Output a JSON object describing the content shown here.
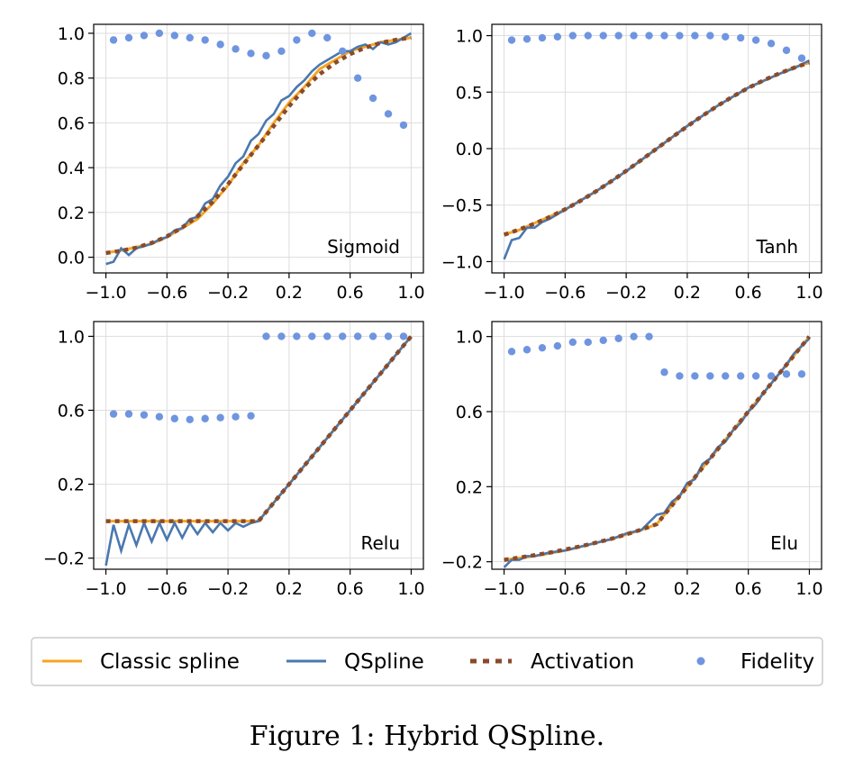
{
  "caption": "Figure 1: Hybrid QSpline.",
  "colors": {
    "classic_spline": "#f5a623",
    "qspline": "#4a78b0",
    "activation": "#8b4a2b",
    "fidelity": "#6f95e0",
    "grid": "#dddddd",
    "axes": "#000000"
  },
  "legend": {
    "placement": "bottom",
    "items": [
      {
        "label": "Classic spline",
        "style": "line",
        "color": "#f5a623"
      },
      {
        "label": "QSpline",
        "style": "line",
        "color": "#4a78b0"
      },
      {
        "label": "Activation",
        "style": "dotted",
        "color": "#8b4a2b"
      },
      {
        "label": "Fidelity",
        "style": "marker",
        "color": "#6f95e0"
      }
    ]
  },
  "chart_data": [
    {
      "type": "line",
      "label": "Sigmoid",
      "label_position": "bottom-right",
      "xlim": [
        -1.08,
        1.08
      ],
      "ylim": [
        -0.07,
        1.04
      ],
      "xticks": [
        -1.0,
        -0.6,
        -0.2,
        0.2,
        0.6,
        1.0
      ],
      "xtick_labels": [
        "−1.0",
        "−0.6",
        "−0.2",
        "0.2",
        "0.6",
        "1.0"
      ],
      "yticks": [
        0.0,
        0.2,
        0.4,
        0.6,
        0.8,
        1.0
      ],
      "ytick_labels": [
        "0.0",
        "0.2",
        "0.4",
        "0.6",
        "0.8",
        "1.0"
      ],
      "grid": true,
      "series": [
        {
          "name": "Classic spline",
          "x": [
            -1.0,
            -0.9,
            -0.8,
            -0.7,
            -0.6,
            -0.5,
            -0.4,
            -0.3,
            -0.2,
            -0.1,
            0.0,
            0.1,
            0.2,
            0.3,
            0.4,
            0.5,
            0.6,
            0.7,
            0.8,
            0.9,
            1.0
          ],
          "y": [
            0.02,
            0.03,
            0.045,
            0.06,
            0.09,
            0.13,
            0.17,
            0.24,
            0.32,
            0.42,
            0.5,
            0.6,
            0.69,
            0.76,
            0.84,
            0.88,
            0.92,
            0.94,
            0.96,
            0.97,
            0.98
          ]
        },
        {
          "name": "QSpline",
          "x": [
            -1.0,
            -0.95,
            -0.9,
            -0.85,
            -0.8,
            -0.75,
            -0.7,
            -0.65,
            -0.6,
            -0.55,
            -0.5,
            -0.45,
            -0.4,
            -0.35,
            -0.3,
            -0.25,
            -0.2,
            -0.15,
            -0.1,
            -0.05,
            0.0,
            0.05,
            0.1,
            0.15,
            0.2,
            0.25,
            0.3,
            0.35,
            0.4,
            0.45,
            0.5,
            0.55,
            0.6,
            0.65,
            0.7,
            0.75,
            0.8,
            0.85,
            0.9,
            0.95,
            1.0
          ],
          "y": [
            -0.03,
            -0.02,
            0.04,
            0.01,
            0.04,
            0.05,
            0.06,
            0.08,
            0.09,
            0.12,
            0.13,
            0.17,
            0.18,
            0.24,
            0.26,
            0.32,
            0.36,
            0.42,
            0.45,
            0.52,
            0.55,
            0.61,
            0.64,
            0.7,
            0.72,
            0.76,
            0.79,
            0.83,
            0.86,
            0.88,
            0.9,
            0.92,
            0.92,
            0.94,
            0.95,
            0.93,
            0.96,
            0.95,
            0.96,
            0.98,
            1.0
          ]
        },
        {
          "name": "Activation",
          "x": [
            -1.0,
            -0.9,
            -0.8,
            -0.7,
            -0.6,
            -0.5,
            -0.4,
            -0.3,
            -0.2,
            -0.1,
            0.0,
            0.1,
            0.2,
            0.3,
            0.4,
            0.5,
            0.6,
            0.7,
            0.8,
            0.9,
            1.0
          ],
          "y": [
            0.019,
            0.029,
            0.043,
            0.064,
            0.093,
            0.133,
            0.183,
            0.248,
            0.326,
            0.414,
            0.5,
            0.586,
            0.674,
            0.752,
            0.817,
            0.867,
            0.907,
            0.936,
            0.957,
            0.971,
            0.981
          ]
        },
        {
          "name": "Fidelity",
          "x": [
            -0.95,
            -0.85,
            -0.75,
            -0.65,
            -0.55,
            -0.45,
            -0.35,
            -0.25,
            -0.15,
            -0.05,
            0.05,
            0.15,
            0.25,
            0.35,
            0.45,
            0.55,
            0.65,
            0.75,
            0.85,
            0.95
          ],
          "y": [
            0.97,
            0.98,
            0.99,
            1.0,
            0.99,
            0.98,
            0.97,
            0.95,
            0.93,
            0.91,
            0.9,
            0.92,
            0.97,
            1.0,
            0.98,
            0.92,
            0.8,
            0.71,
            0.64,
            0.59
          ]
        }
      ]
    },
    {
      "type": "line",
      "label": "Tanh",
      "label_position": "bottom-right",
      "xlim": [
        -1.08,
        1.08
      ],
      "ylim": [
        -1.1,
        1.1
      ],
      "xticks": [
        -1.0,
        -0.6,
        -0.2,
        0.2,
        0.6,
        1.0
      ],
      "xtick_labels": [
        "−1.0",
        "−0.6",
        "−0.2",
        "0.2",
        "0.6",
        "1.0"
      ],
      "yticks": [
        -1.0,
        -0.5,
        0.0,
        0.5,
        1.0
      ],
      "ytick_labels": [
        "−1.0",
        "−0.5",
        "0.0",
        "0.5",
        "1.0"
      ],
      "grid": true,
      "series": [
        {
          "name": "Classic spline",
          "x": [
            -1.0,
            -0.9,
            -0.8,
            -0.7,
            -0.6,
            -0.5,
            -0.4,
            -0.3,
            -0.2,
            -0.1,
            0.0,
            0.1,
            0.2,
            0.3,
            0.4,
            0.5,
            0.6,
            0.7,
            0.8,
            0.9,
            1.0
          ],
          "y": [
            -0.76,
            -0.72,
            -0.66,
            -0.6,
            -0.54,
            -0.46,
            -0.38,
            -0.29,
            -0.2,
            -0.1,
            0.0,
            0.1,
            0.2,
            0.29,
            0.38,
            0.46,
            0.54,
            0.6,
            0.66,
            0.72,
            0.76
          ]
        },
        {
          "name": "QSpline",
          "x": [
            -1.0,
            -0.95,
            -0.9,
            -0.85,
            -0.8,
            -0.75,
            -0.7,
            -0.6,
            -0.5,
            -0.4,
            -0.3,
            -0.2,
            -0.1,
            0.0,
            0.1,
            0.2,
            0.3,
            0.4,
            0.5,
            0.6,
            0.7,
            0.8,
            0.9,
            1.0
          ],
          "y": [
            -0.98,
            -0.81,
            -0.79,
            -0.7,
            -0.7,
            -0.65,
            -0.62,
            -0.54,
            -0.46,
            -0.38,
            -0.29,
            -0.2,
            -0.1,
            0.0,
            0.1,
            0.2,
            0.29,
            0.38,
            0.46,
            0.54,
            0.6,
            0.66,
            0.71,
            0.78
          ]
        },
        {
          "name": "Activation",
          "x": [
            -1.0,
            -0.9,
            -0.8,
            -0.7,
            -0.6,
            -0.5,
            -0.4,
            -0.3,
            -0.2,
            -0.1,
            0.0,
            0.1,
            0.2,
            0.3,
            0.4,
            0.5,
            0.6,
            0.7,
            0.8,
            0.9,
            1.0
          ],
          "y": [
            -0.762,
            -0.716,
            -0.664,
            -0.604,
            -0.537,
            -0.462,
            -0.38,
            -0.291,
            -0.197,
            -0.1,
            0.0,
            0.1,
            0.197,
            0.291,
            0.38,
            0.462,
            0.537,
            0.604,
            0.664,
            0.716,
            0.762
          ]
        },
        {
          "name": "Fidelity",
          "x": [
            -0.95,
            -0.85,
            -0.75,
            -0.65,
            -0.55,
            -0.45,
            -0.35,
            -0.25,
            -0.15,
            -0.05,
            0.05,
            0.15,
            0.25,
            0.35,
            0.45,
            0.55,
            0.65,
            0.75,
            0.85,
            0.95
          ],
          "y": [
            0.96,
            0.97,
            0.98,
            0.99,
            1.0,
            1.0,
            1.0,
            1.0,
            1.0,
            1.0,
            1.0,
            1.0,
            1.0,
            1.0,
            0.99,
            0.98,
            0.96,
            0.93,
            0.87,
            0.8
          ]
        }
      ]
    },
    {
      "type": "line",
      "label": "Relu",
      "label_position": "bottom-right",
      "xlim": [
        -1.08,
        1.08
      ],
      "ylim": [
        -0.26,
        1.08
      ],
      "xticks": [
        -1.0,
        -0.6,
        -0.2,
        0.2,
        0.6,
        1.0
      ],
      "xtick_labels": [
        "−1.0",
        "−0.6",
        "−0.2",
        "0.2",
        "0.6",
        "1.0"
      ],
      "yticks": [
        -0.2,
        0.2,
        0.6,
        1.0
      ],
      "ytick_labels": [
        "−0.2",
        "0.2",
        "0.6",
        "1.0"
      ],
      "grid": true,
      "series": [
        {
          "name": "Classic spline",
          "x": [
            -1.0,
            0.0,
            0.1,
            0.2,
            0.3,
            0.4,
            0.5,
            0.6,
            0.7,
            0.8,
            0.9,
            1.0
          ],
          "y": [
            0.0,
            0.0,
            0.1,
            0.2,
            0.3,
            0.4,
            0.5,
            0.6,
            0.7,
            0.8,
            0.9,
            1.0
          ]
        },
        {
          "name": "QSpline",
          "x": [
            -1.0,
            -0.95,
            -0.9,
            -0.85,
            -0.8,
            -0.75,
            -0.7,
            -0.65,
            -0.6,
            -0.55,
            -0.5,
            -0.45,
            -0.4,
            -0.35,
            -0.3,
            -0.25,
            -0.2,
            -0.15,
            -0.1,
            -0.05,
            0.0,
            0.1,
            0.2,
            0.3,
            0.4,
            0.5,
            0.6,
            0.7,
            0.8,
            0.9,
            1.0
          ],
          "y": [
            -0.24,
            -0.02,
            -0.16,
            -0.02,
            -0.13,
            -0.01,
            -0.11,
            -0.01,
            -0.1,
            -0.01,
            -0.09,
            -0.01,
            -0.07,
            -0.01,
            -0.06,
            -0.01,
            -0.05,
            -0.01,
            -0.03,
            -0.01,
            0.0,
            0.1,
            0.2,
            0.3,
            0.4,
            0.5,
            0.6,
            0.7,
            0.8,
            0.9,
            1.0
          ]
        },
        {
          "name": "Activation",
          "x": [
            -1.0,
            -0.9,
            -0.8,
            -0.7,
            -0.6,
            -0.5,
            -0.4,
            -0.3,
            -0.2,
            -0.1,
            0.0,
            0.1,
            0.2,
            0.3,
            0.4,
            0.5,
            0.6,
            0.7,
            0.8,
            0.9,
            1.0
          ],
          "y": [
            0.0,
            0.0,
            0.0,
            0.0,
            0.0,
            0.0,
            0.0,
            0.0,
            0.0,
            0.0,
            0.0,
            0.1,
            0.2,
            0.3,
            0.4,
            0.5,
            0.6,
            0.7,
            0.8,
            0.9,
            1.0
          ]
        },
        {
          "name": "Fidelity",
          "x": [
            -0.95,
            -0.85,
            -0.75,
            -0.65,
            -0.55,
            -0.45,
            -0.35,
            -0.25,
            -0.15,
            -0.05,
            0.05,
            0.15,
            0.25,
            0.35,
            0.45,
            0.55,
            0.65,
            0.75,
            0.85,
            0.95
          ],
          "y": [
            0.58,
            0.58,
            0.575,
            0.565,
            0.555,
            0.55,
            0.555,
            0.56,
            0.565,
            0.57,
            1.0,
            1.0,
            1.0,
            1.0,
            1.0,
            1.0,
            1.0,
            1.0,
            1.0,
            1.0
          ]
        }
      ]
    },
    {
      "type": "line",
      "label": "Elu",
      "label_position": "bottom-right",
      "xlim": [
        -1.08,
        1.08
      ],
      "ylim": [
        -0.24,
        1.08
      ],
      "xticks": [
        -1.0,
        -0.6,
        -0.2,
        0.2,
        0.6,
        1.0
      ],
      "xtick_labels": [
        "−1.0",
        "−0.6",
        "−0.2",
        "0.2",
        "0.6",
        "1.0"
      ],
      "yticks": [
        -0.2,
        0.2,
        0.6,
        1.0
      ],
      "ytick_labels": [
        "−0.2",
        "0.2",
        "0.6",
        "1.0"
      ],
      "grid": true,
      "series": [
        {
          "name": "Classic spline",
          "x": [
            -1.0,
            -0.9,
            -0.8,
            -0.7,
            -0.6,
            -0.5,
            -0.4,
            -0.3,
            -0.2,
            -0.1,
            0.0,
            0.1,
            0.2,
            0.3,
            0.4,
            0.5,
            0.6,
            0.7,
            0.8,
            0.9,
            1.0
          ],
          "y": [
            -0.19,
            -0.18,
            -0.17,
            -0.155,
            -0.14,
            -0.12,
            -0.1,
            -0.08,
            -0.055,
            -0.03,
            0.0,
            0.1,
            0.2,
            0.3,
            0.4,
            0.5,
            0.6,
            0.7,
            0.8,
            0.9,
            1.0
          ]
        },
        {
          "name": "QSpline",
          "x": [
            -1.0,
            -0.95,
            -0.9,
            -0.85,
            -0.8,
            -0.7,
            -0.6,
            -0.5,
            -0.4,
            -0.3,
            -0.2,
            -0.1,
            0.0,
            0.05,
            0.1,
            0.15,
            0.2,
            0.25,
            0.3,
            0.35,
            0.4,
            0.45,
            0.5,
            0.55,
            0.6,
            0.65,
            0.7,
            0.75,
            0.8,
            0.85,
            0.9,
            0.95,
            1.0
          ],
          "y": [
            -0.23,
            -0.19,
            -0.19,
            -0.17,
            -0.17,
            -0.15,
            -0.14,
            -0.12,
            -0.1,
            -0.08,
            -0.05,
            -0.03,
            0.05,
            0.06,
            0.12,
            0.15,
            0.22,
            0.24,
            0.32,
            0.35,
            0.41,
            0.44,
            0.5,
            0.54,
            0.6,
            0.64,
            0.7,
            0.75,
            0.8,
            0.85,
            0.91,
            0.95,
            0.99
          ]
        },
        {
          "name": "Activation",
          "x": [
            -1.0,
            -0.9,
            -0.8,
            -0.7,
            -0.6,
            -0.5,
            -0.4,
            -0.3,
            -0.2,
            -0.1,
            0.0,
            0.1,
            0.2,
            0.3,
            0.4,
            0.5,
            0.6,
            0.7,
            0.8,
            0.9,
            1.0
          ],
          "y": [
            -0.19,
            -0.178,
            -0.165,
            -0.151,
            -0.135,
            -0.118,
            -0.099,
            -0.078,
            -0.054,
            -0.029,
            0.0,
            0.1,
            0.2,
            0.3,
            0.4,
            0.5,
            0.6,
            0.7,
            0.8,
            0.9,
            1.0
          ]
        },
        {
          "name": "Fidelity",
          "x": [
            -0.95,
            -0.85,
            -0.75,
            -0.65,
            -0.55,
            -0.45,
            -0.35,
            -0.25,
            -0.15,
            -0.05,
            0.05,
            0.15,
            0.25,
            0.35,
            0.45,
            0.55,
            0.65,
            0.75,
            0.85,
            0.95
          ],
          "y": [
            0.92,
            0.93,
            0.94,
            0.95,
            0.97,
            0.97,
            0.98,
            0.99,
            1.0,
            1.0,
            0.81,
            0.79,
            0.79,
            0.79,
            0.79,
            0.79,
            0.79,
            0.79,
            0.8,
            0.8
          ]
        }
      ]
    }
  ]
}
